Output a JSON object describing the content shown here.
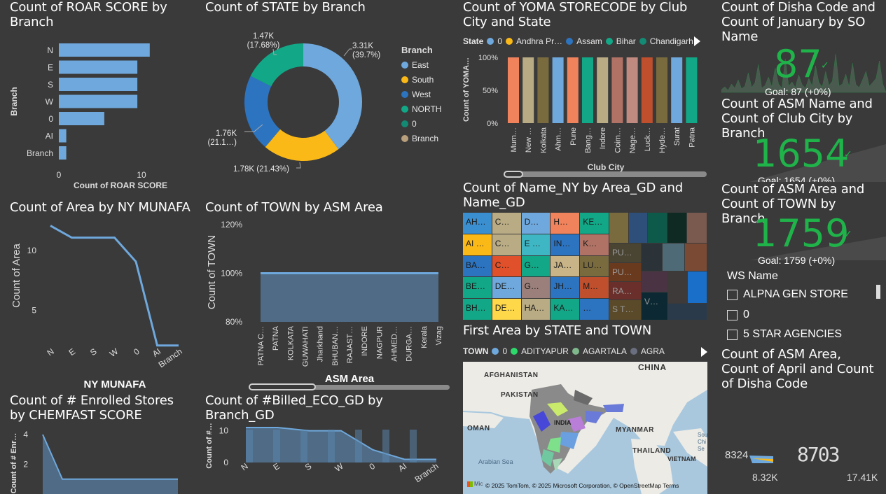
{
  "roar": {
    "title": "Count of ROAR SCORE by Branch",
    "ylabel": "Branch",
    "xlabel": "Count of ROAR SCORE",
    "ticks": [
      "0",
      "10"
    ]
  },
  "state_donut": {
    "title": "Count of STATE by Branch",
    "legend_title": "Branch",
    "legend": [
      "East",
      "South",
      "West",
      "NORTH",
      "0",
      "Branch"
    ],
    "labels": [
      "3.31K\n(39.7%)",
      "1.78K (21.43%)",
      "1.76K\n(21.1…)",
      "1.47K\n(17.68%)"
    ]
  },
  "yoma": {
    "title": "Count of YOMA STORECODE by Club City and State",
    "legend_title": "State",
    "legend": [
      "0",
      "Andhra Pr…",
      "Assam",
      "Bihar",
      "Chandigarh"
    ],
    "ylabel": "Count of YOMA…",
    "xlabel": "Club City",
    "ticks": [
      "100%",
      "50%",
      "0%"
    ]
  },
  "kpi1": {
    "title": "Count of Disha Code and Count of January by SO Name",
    "value": "87",
    "goal": "Goal: 87 (+0%)"
  },
  "kpi2": {
    "title": "Count of ASM Name and Count of Club City by Branch",
    "value": "1654",
    "goal": "Goal: 1654 (+0%)"
  },
  "kpi3": {
    "title": "Count of ASM Area and Count of TOWN by Branch",
    "value": "1759",
    "goal": "Goal: 1759 (+0%)"
  },
  "area_line": {
    "title": "Count of Area by NY MUNAFA",
    "ylabel": "Count of Area",
    "xlabel": "NY MUNAFA",
    "ticks": [
      "10",
      "5"
    ]
  },
  "town": {
    "title": "Count of TOWN by ASM Area",
    "ylabel": "Count of TOWN",
    "xlabel": "ASM Area",
    "ticks": [
      "120%",
      "100%",
      "80%"
    ]
  },
  "treemap": {
    "title": "Count of Name_NY by Area_GD and Name_GD",
    "cells": [
      "AH…",
      "C…",
      "D…",
      "H…",
      "KE…",
      "AI …",
      "C…",
      "E …",
      "IN…",
      "K…",
      "BA…",
      "C…",
      "G…",
      "JA…",
      "LU…",
      "BE…",
      "DE…",
      "G…",
      "JH…",
      "M…",
      "BH…",
      "DE…",
      "HA…",
      "KA…",
      "…",
      "…",
      "PU…",
      "PU…",
      "RA…",
      "S T…",
      "V…",
      "…",
      "…"
    ]
  },
  "first_area": {
    "title": "First Area by STATE and TOWN",
    "legend_title": "TOWN",
    "legend": [
      "0",
      "ADITYAPUR",
      "AGARTALA",
      "AGRA"
    ],
    "map_labels": [
      "AFGHANISTAN",
      "CHINA",
      "PAKISTAN",
      "INDIA",
      "OMAN",
      "MYANMAR",
      "THAILAND",
      "VIETNAM",
      "Arabian Sea",
      "Sou\nChi\nSe"
    ],
    "attribution": "© 2025 TomTom, © 2025 Microsoft Corporation, © OpenStreetMap  Terms",
    "ms_logo": "Mic"
  },
  "ws": {
    "title": "WS Name",
    "items": [
      "ALPNA GEN STORE",
      "0",
      "5 STAR AGENCIES"
    ]
  },
  "asm_april": {
    "title": "Count of ASM Area, Count of April and Count of Disha Code",
    "v1": "8324",
    "v2": "8703",
    "min": "8.32K",
    "max": "17.41K"
  },
  "enrolled": {
    "title": "Count of # Enrolled Stores by CHEMFAST SCORE",
    "ylabel": "Count of # Enr…",
    "ticks": [
      "4",
      "2"
    ]
  },
  "billed": {
    "title": "Count of #Billed_ECO_GD by Branch_GD",
    "ylabel": "Count of #…",
    "ticks": [
      "10",
      "0"
    ]
  },
  "chart_data": [
    {
      "type": "bar",
      "title": "Count of ROAR SCORE by Branch",
      "xlabel": "Count of ROAR SCORE",
      "ylabel": "Branch",
      "categories": [
        "N",
        "E",
        "S",
        "W",
        "0",
        "AI",
        "Branch"
      ],
      "values": [
        11,
        9.5,
        9.5,
        9.5,
        5.5,
        0.9,
        0.9
      ],
      "xlim": [
        0,
        12
      ]
    },
    {
      "type": "pie",
      "title": "Count of STATE by Branch",
      "categories": [
        "East",
        "South",
        "West",
        "NORTH"
      ],
      "values": [
        3310,
        1780,
        1760,
        1470
      ],
      "colors": [
        "#6fa8dc",
        "#fbb917",
        "#2d74c0",
        "#12a887"
      ]
    },
    {
      "type": "bar",
      "title": "Count of YOMA STORECODE by Club City and State",
      "xlabel": "Club City",
      "ylabel": "Count of YOMA…",
      "categories": [
        "Mum…",
        "New …",
        "Kolkata",
        "Ahm…",
        "Pune",
        "Bang…",
        "Indore",
        "Coim…",
        "Nage…",
        "Luck…",
        "Hyde…",
        "Surat",
        "Patna"
      ],
      "values": [
        100,
        100,
        100,
        100,
        100,
        100,
        100,
        100,
        100,
        100,
        100,
        100,
        100
      ],
      "colors": [
        "#f0825c",
        "#b9ab84",
        "#7a6b3f",
        "#6fa8dc",
        "#f0825c",
        "#12a887",
        "#b9ab84",
        "#b07264",
        "#c08a80",
        "#c04f2d",
        "#7a6b3f",
        "#6fa8dc",
        "#12a887"
      ],
      "ylim": [
        0,
        100
      ]
    },
    {
      "type": "line",
      "title": "Count of Area by NY MUNAFA",
      "xlabel": "NY MUNAFA",
      "ylabel": "Count of Area",
      "categories": [
        "N",
        "E",
        "S",
        "W",
        "0",
        "AI",
        "Branch"
      ],
      "values": [
        12,
        11,
        11,
        11,
        9,
        2,
        2
      ],
      "ylim": [
        0,
        12.5
      ]
    },
    {
      "type": "area",
      "title": "Count of TOWN by ASM Area",
      "xlabel": "ASM Area",
      "ylabel": "Count of TOWN",
      "categories": [
        "PATNA C…",
        "PATNA",
        "KOLKATA",
        "GUWAHATI",
        "Jharkhand",
        "BHUBAN…",
        "RAJAST…",
        "INDORE",
        "NAGPUR",
        "AHMED…",
        "DURGA…",
        "Kerala",
        "Vizag"
      ],
      "values": [
        100,
        100,
        100,
        100,
        100,
        100,
        100,
        100,
        100,
        100,
        100,
        100,
        100
      ],
      "ylim": [
        80,
        120
      ]
    },
    {
      "type": "area",
      "title": "Count of # Enrolled Stores by CHEMFAST SCORE",
      "values": [
        4,
        1,
        1,
        1,
        1,
        1
      ],
      "ylim": [
        0,
        4.4
      ]
    },
    {
      "type": "area",
      "title": "Count of #Billed_ECO_GD by Branch_GD",
      "categories": [
        "N",
        "E",
        "S",
        "W",
        "0",
        "AI",
        "Branch"
      ],
      "values": [
        11,
        11,
        10,
        10,
        4,
        1,
        1
      ],
      "ylim": [
        0,
        14
      ]
    }
  ]
}
